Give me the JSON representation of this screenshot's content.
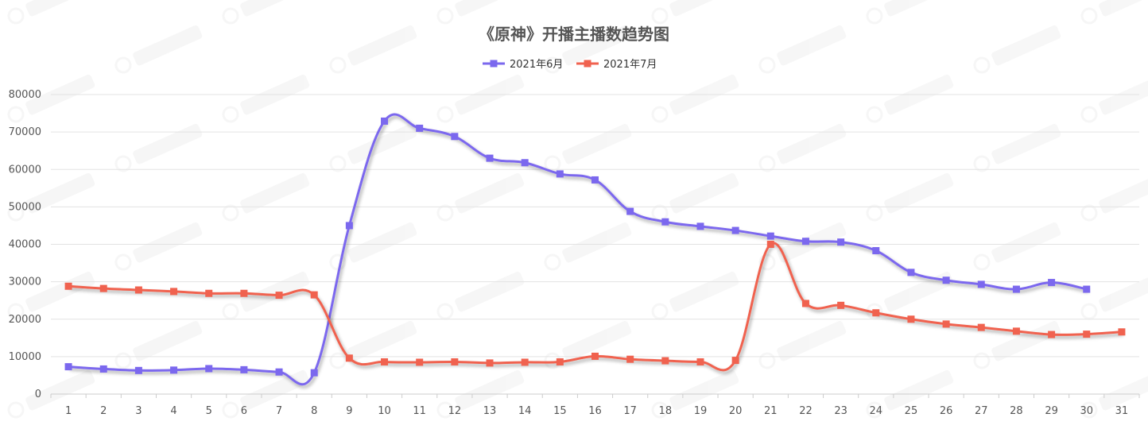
{
  "chart_data": {
    "type": "line",
    "title": "《原神》开播主播数趋势图",
    "xlabel": "",
    "ylabel": "",
    "categories": [
      "1",
      "2",
      "3",
      "4",
      "5",
      "6",
      "7",
      "8",
      "9",
      "10",
      "11",
      "12",
      "13",
      "14",
      "15",
      "16",
      "17",
      "18",
      "19",
      "20",
      "21",
      "22",
      "23",
      "24",
      "25",
      "26",
      "27",
      "28",
      "29",
      "30",
      "31"
    ],
    "ylim": [
      0,
      80000
    ],
    "yticks": [
      0,
      10000,
      20000,
      30000,
      40000,
      50000,
      60000,
      70000,
      80000
    ],
    "grid": true,
    "legend_position": "top-center",
    "series": [
      {
        "name": "2021年6月",
        "color": "#7b68ee",
        "values": [
          7300,
          6700,
          6300,
          6400,
          6800,
          6500,
          5900,
          5700,
          45000,
          72900,
          71000,
          68800,
          63000,
          61800,
          58800,
          57200,
          48800,
          46000,
          44800,
          43700,
          42200,
          40800,
          40600,
          38300,
          32500,
          30400,
          29300,
          28000,
          29800,
          28000,
          null
        ]
      },
      {
        "name": "2021年7月",
        "color": "#f0624f",
        "values": [
          28800,
          28200,
          27800,
          27400,
          26900,
          26900,
          26400,
          26500,
          9600,
          8600,
          8500,
          8600,
          8300,
          8500,
          8600,
          10100,
          9300,
          8900,
          8600,
          9000,
          40000,
          24200,
          23700,
          21700,
          20000,
          18700,
          17800,
          16800,
          15900,
          16000,
          16600
        ]
      }
    ]
  }
}
